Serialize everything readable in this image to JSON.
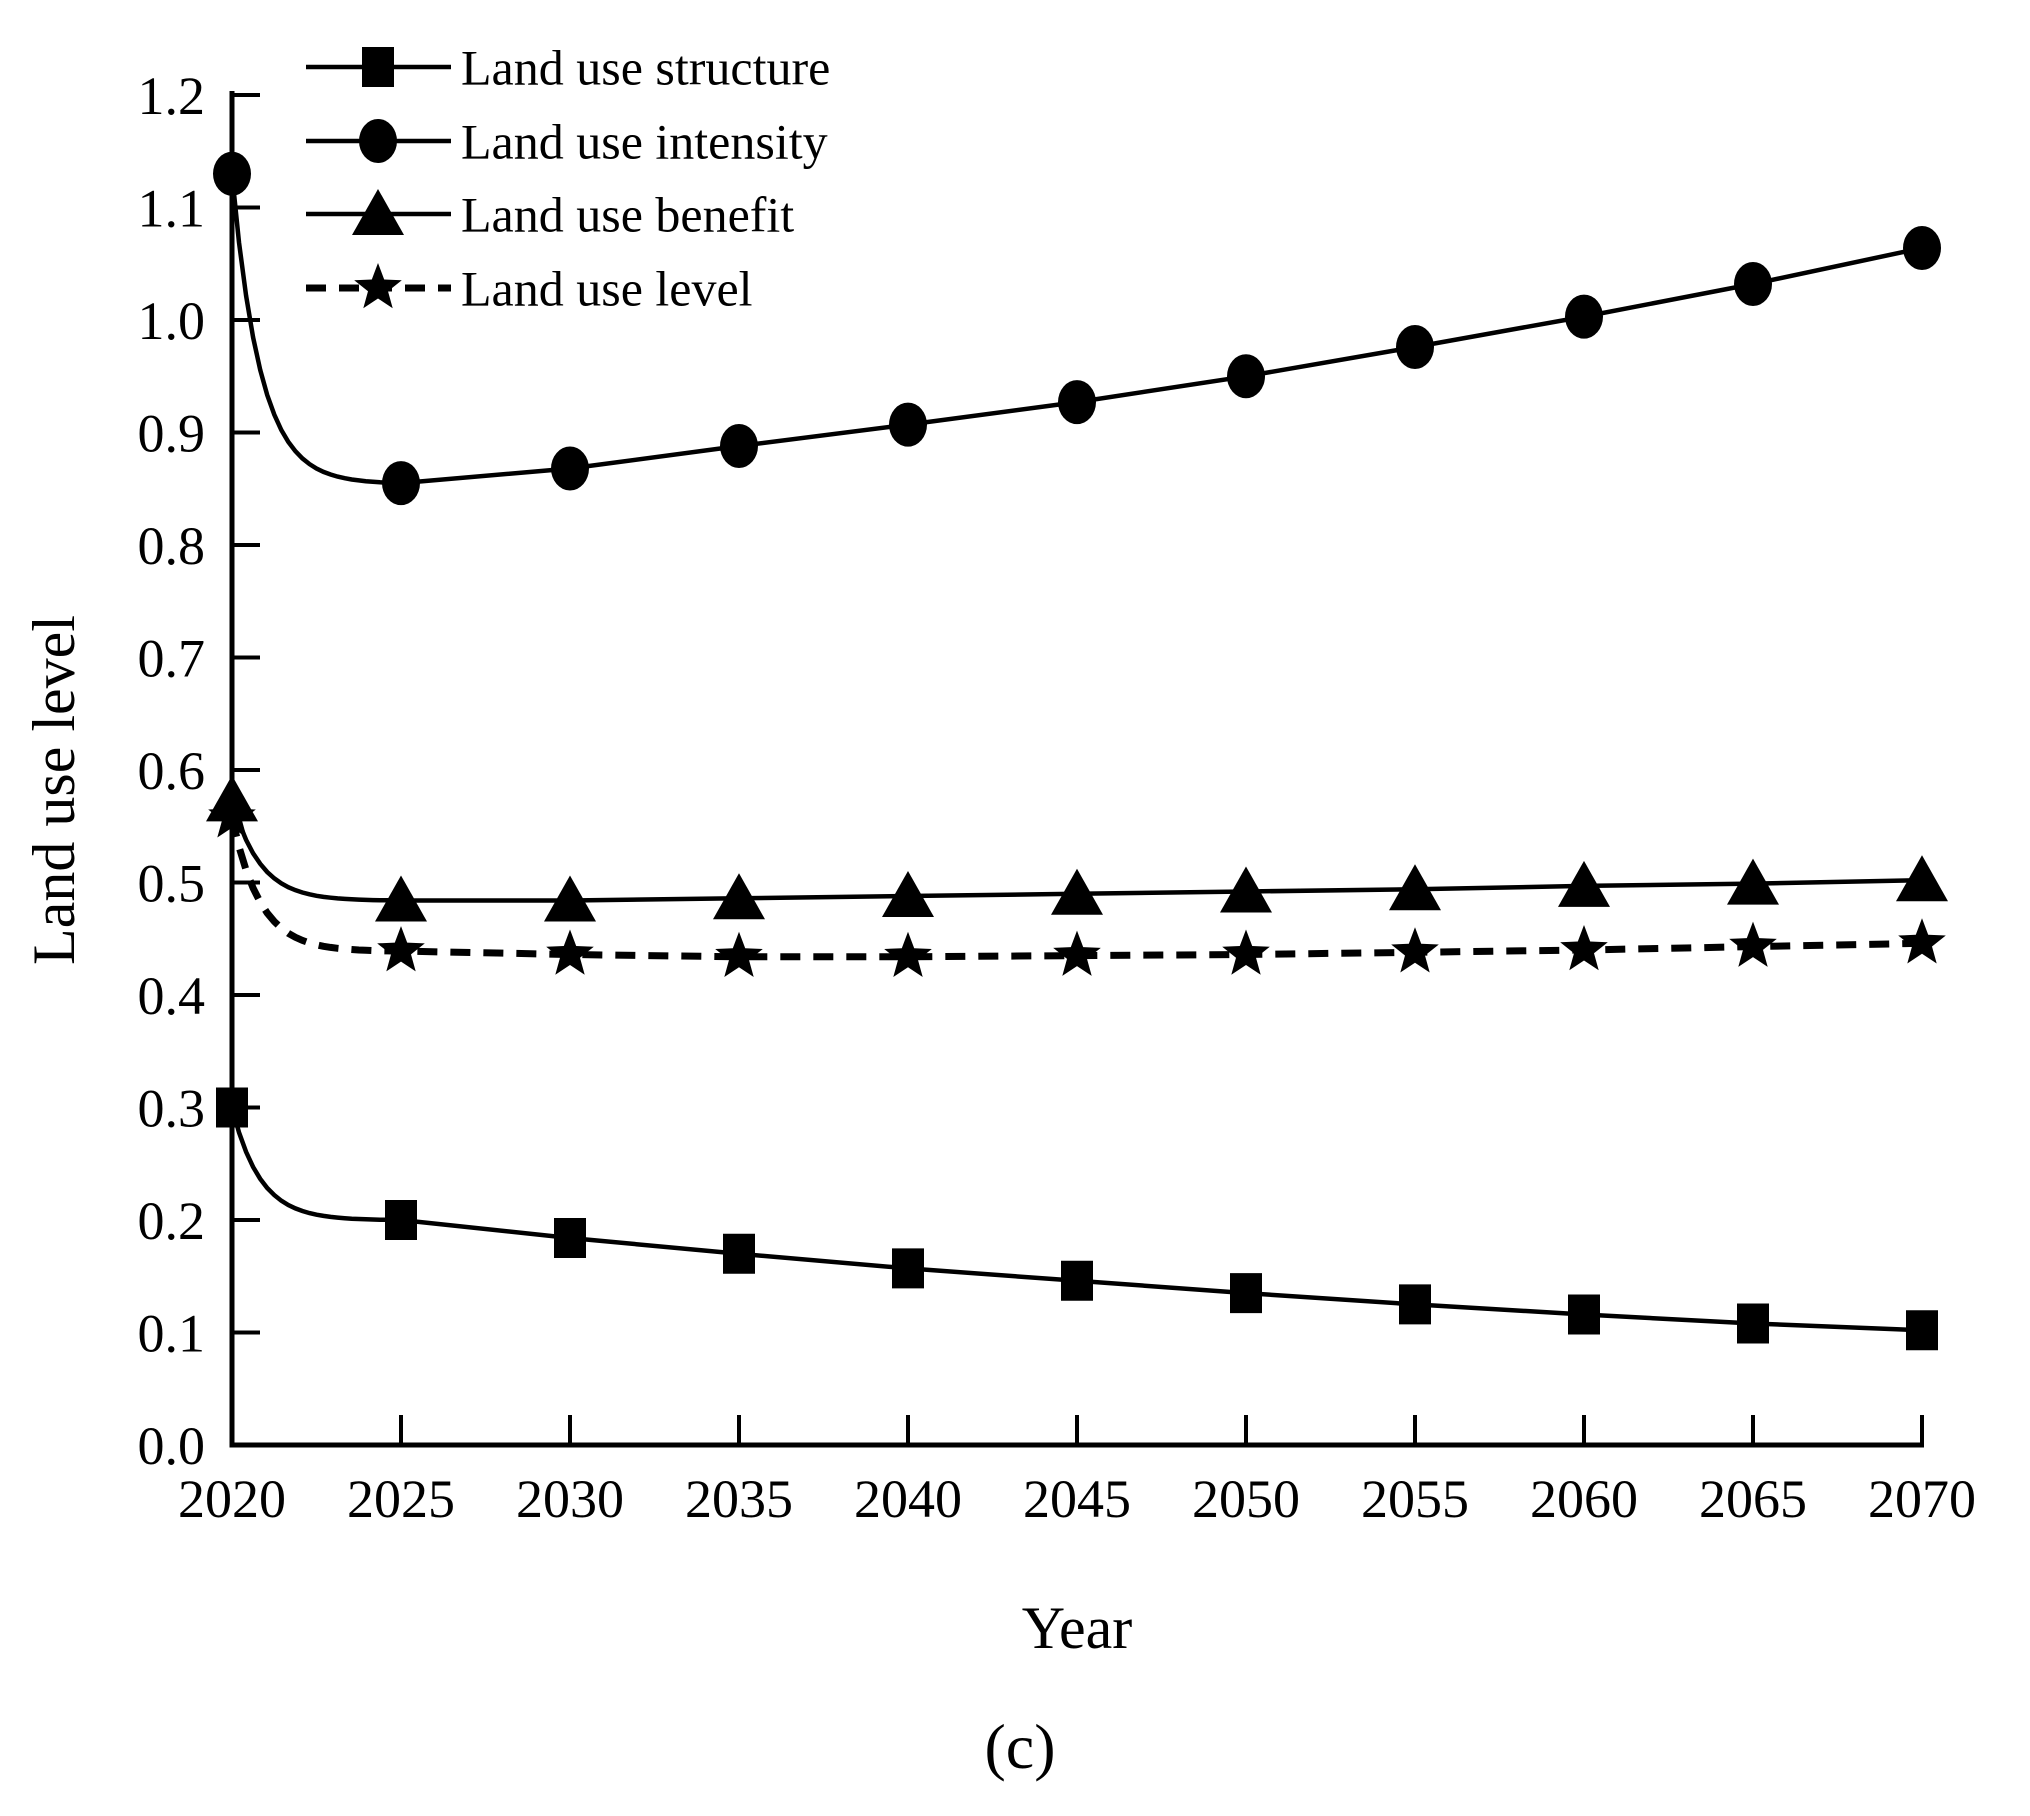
{
  "figure": {
    "caption": "(c)",
    "background": "#ffffff",
    "ink_color": "#000000"
  },
  "chart_data": {
    "type": "line",
    "title": "",
    "xlabel": "Year",
    "ylabel": "Land use level",
    "x": [
      2020,
      2025,
      2030,
      2035,
      2040,
      2045,
      2050,
      2055,
      2060,
      2065,
      2070
    ],
    "xlim": [
      2020,
      2070
    ],
    "ylim": [
      0.0,
      1.2
    ],
    "y_ticks": [
      0.0,
      0.1,
      0.2,
      0.3,
      0.4,
      0.5,
      0.6,
      0.7,
      0.8,
      0.9,
      1.0,
      1.1,
      1.2
    ],
    "x_tick_step": 5,
    "grid": false,
    "legend_position": "top-left",
    "series": [
      {
        "name": "Land use structure",
        "marker": "square",
        "line_style": "solid",
        "values": [
          0.3,
          0.2,
          0.184,
          0.17,
          0.157,
          0.146,
          0.135,
          0.125,
          0.116,
          0.108,
          0.102
        ]
      },
      {
        "name": "Land use intensity",
        "marker": "circle",
        "line_style": "solid",
        "values": [
          1.13,
          0.855,
          0.868,
          0.888,
          0.907,
          0.927,
          0.95,
          0.976,
          1.003,
          1.032,
          1.064
        ]
      },
      {
        "name": "Land use benefit",
        "marker": "triangle",
        "line_style": "solid",
        "values": [
          0.573,
          0.484,
          0.484,
          0.486,
          0.488,
          0.49,
          0.492,
          0.494,
          0.497,
          0.499,
          0.502
        ]
      },
      {
        "name": "Land use level",
        "marker": "star",
        "line_style": "dashed",
        "values": [
          0.558,
          0.439,
          0.436,
          0.434,
          0.434,
          0.435,
          0.436,
          0.438,
          0.44,
          0.443,
          0.446
        ]
      }
    ]
  }
}
